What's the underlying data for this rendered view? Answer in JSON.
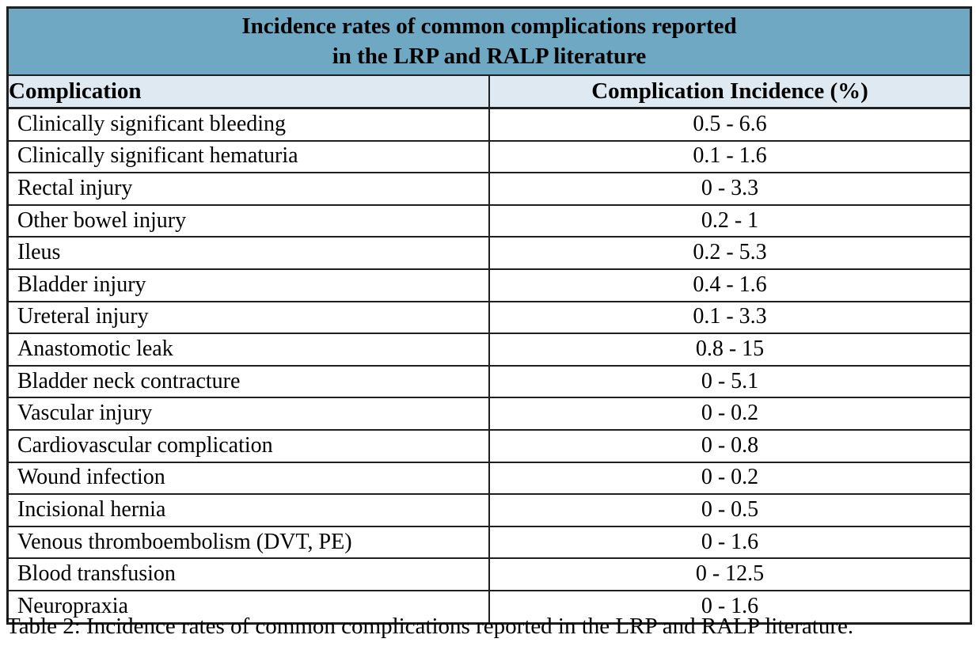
{
  "colors": {
    "title_bg": "#6FA8C2",
    "header_bg": "#DEE9F1",
    "border": "#1f1f1f",
    "text": "#000000"
  },
  "table": {
    "title_line1": "Incidence rates of common complications reported",
    "title_line2": "in the LRP and RALP literature",
    "columns": {
      "complication": "Complication",
      "incidence": "Complication Incidence (%)"
    },
    "rows": [
      {
        "complication": "Clinically significant bleeding",
        "incidence": "0.5 - 6.6"
      },
      {
        "complication": "Clinically significant hematuria",
        "incidence": "0.1 - 1.6"
      },
      {
        "complication": "Rectal injury",
        "incidence": "0 - 3.3"
      },
      {
        "complication": "Other bowel injury",
        "incidence": "0.2 - 1"
      },
      {
        "complication": "Ileus",
        "incidence": "0.2 - 5.3"
      },
      {
        "complication": "Bladder injury",
        "incidence": "0.4 - 1.6"
      },
      {
        "complication": "Ureteral injury",
        "incidence": "0.1 - 3.3"
      },
      {
        "complication": "Anastomotic leak",
        "incidence": "0.8 - 15"
      },
      {
        "complication": "Bladder neck contracture",
        "incidence": "0 - 5.1"
      },
      {
        "complication": "Vascular injury",
        "incidence": "0 - 0.2"
      },
      {
        "complication": "Cardiovascular complication",
        "incidence": "0 - 0.8"
      },
      {
        "complication": "Wound infection",
        "incidence": "0 - 0.2"
      },
      {
        "complication": "Incisional hernia",
        "incidence": "0 - 0.5"
      },
      {
        "complication": "Venous thromboembolism (DVT, PE)",
        "incidence": "0 - 1.6"
      },
      {
        "complication": "Blood transfusion",
        "incidence": "0 - 12.5"
      },
      {
        "complication": "Neuropraxia",
        "incidence": "0 - 1.6"
      }
    ]
  },
  "caption": "Table 2: Incidence rates of common complications reported in the LRP and RALP literature."
}
